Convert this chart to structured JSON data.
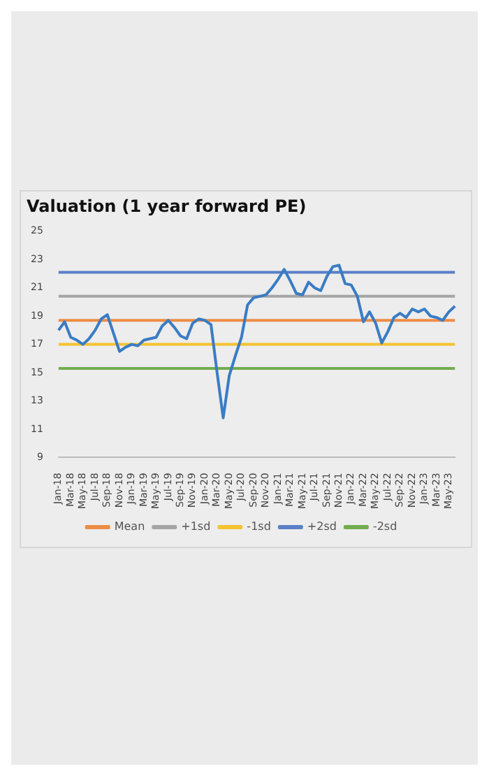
{
  "chart_data": {
    "type": "line",
    "title": "Valuation (1 year forward PE)",
    "categories": [
      "Jan-18",
      null,
      "Mar-18",
      null,
      "May-18",
      null,
      "Jul-18",
      null,
      "Sep-18",
      null,
      "Nov-18",
      null,
      "Jan-19",
      null,
      "Mar-19",
      null,
      "May-19",
      null,
      "Jul-19",
      null,
      "Sep-19",
      null,
      "Nov-19",
      null,
      "Jan-20",
      null,
      "Mar-20",
      null,
      "May-20",
      null,
      "Jul-20",
      null,
      "Sep-20",
      null,
      "Nov-20",
      null,
      "Jan-21",
      null,
      "Mar-21",
      null,
      "May-21",
      null,
      "Jul-21",
      null,
      "Sep-21",
      null,
      "Nov-21",
      null,
      "Jan-22",
      null,
      "Mar-22",
      null,
      "May-22",
      null,
      "Jul-22",
      null,
      "Sep-22",
      null,
      "Nov-22",
      null,
      "Jan-23",
      null,
      "Mar-23",
      null,
      "May-23",
      null
    ],
    "series": [
      {
        "color": "#3a7cc4",
        "values": [
          18.0,
          18.6,
          17.5,
          17.3,
          17.0,
          17.4,
          18.0,
          18.8,
          19.1,
          17.8,
          16.5,
          16.8,
          17.0,
          16.9,
          17.3,
          17.4,
          17.5,
          18.3,
          18.7,
          18.2,
          17.6,
          17.4,
          18.5,
          18.8,
          18.7,
          18.4,
          15.0,
          11.8,
          14.8,
          16.2,
          17.5,
          19.8,
          20.3,
          20.4,
          20.5,
          21.0,
          21.6,
          22.3,
          21.5,
          20.6,
          20.5,
          21.4,
          21.0,
          20.8,
          21.8,
          22.5,
          22.6,
          21.3,
          21.2,
          20.4,
          18.6,
          19.3,
          18.5,
          17.1,
          17.9,
          18.9,
          19.2,
          18.9,
          19.5,
          19.3,
          19.5,
          19.0,
          18.9,
          18.7,
          19.3,
          19.7
        ]
      },
      {
        "name": "Mean",
        "color": "#ed8c45",
        "values": [
          18.7,
          18.7,
          18.7,
          18.7,
          18.7,
          18.7,
          18.7,
          18.7,
          18.7,
          18.7,
          18.7,
          18.7,
          18.7,
          18.7,
          18.7,
          18.7,
          18.7,
          18.7,
          18.7,
          18.7,
          18.7,
          18.7,
          18.7,
          18.7,
          18.7,
          18.7,
          18.7,
          18.7,
          18.7,
          18.7,
          18.7,
          18.7,
          18.7,
          18.7,
          18.7,
          18.7,
          18.7,
          18.7,
          18.7,
          18.7,
          18.7,
          18.7,
          18.7,
          18.7,
          18.7,
          18.7,
          18.7,
          18.7,
          18.7,
          18.7,
          18.7,
          18.7,
          18.7,
          18.7,
          18.7,
          18.7,
          18.7,
          18.7,
          18.7,
          18.7,
          18.7,
          18.7,
          18.7,
          18.7,
          18.7,
          18.7
        ]
      },
      {
        "name": "+1sd",
        "color": "#a5a5a5",
        "values": [
          20.4,
          20.4,
          20.4,
          20.4,
          20.4,
          20.4,
          20.4,
          20.4,
          20.4,
          20.4,
          20.4,
          20.4,
          20.4,
          20.4,
          20.4,
          20.4,
          20.4,
          20.4,
          20.4,
          20.4,
          20.4,
          20.4,
          20.4,
          20.4,
          20.4,
          20.4,
          20.4,
          20.4,
          20.4,
          20.4,
          20.4,
          20.4,
          20.4,
          20.4,
          20.4,
          20.4,
          20.4,
          20.4,
          20.4,
          20.4,
          20.4,
          20.4,
          20.4,
          20.4,
          20.4,
          20.4,
          20.4,
          20.4,
          20.4,
          20.4,
          20.4,
          20.4,
          20.4,
          20.4,
          20.4,
          20.4,
          20.4,
          20.4,
          20.4,
          20.4,
          20.4,
          20.4,
          20.4,
          20.4,
          20.4,
          20.4
        ]
      },
      {
        "name": "-1sd",
        "color": "#f4c330",
        "values": [
          17.0,
          17.0,
          17.0,
          17.0,
          17.0,
          17.0,
          17.0,
          17.0,
          17.0,
          17.0,
          17.0,
          17.0,
          17.0,
          17.0,
          17.0,
          17.0,
          17.0,
          17.0,
          17.0,
          17.0,
          17.0,
          17.0,
          17.0,
          17.0,
          17.0,
          17.0,
          17.0,
          17.0,
          17.0,
          17.0,
          17.0,
          17.0,
          17.0,
          17.0,
          17.0,
          17.0,
          17.0,
          17.0,
          17.0,
          17.0,
          17.0,
          17.0,
          17.0,
          17.0,
          17.0,
          17.0,
          17.0,
          17.0,
          17.0,
          17.0,
          17.0,
          17.0,
          17.0,
          17.0,
          17.0,
          17.0,
          17.0,
          17.0,
          17.0,
          17.0,
          17.0,
          17.0,
          17.0,
          17.0,
          17.0,
          17.0
        ]
      },
      {
        "name": "+2sd",
        "color": "#5b80c8",
        "values": [
          22.1,
          22.1,
          22.1,
          22.1,
          22.1,
          22.1,
          22.1,
          22.1,
          22.1,
          22.1,
          22.1,
          22.1,
          22.1,
          22.1,
          22.1,
          22.1,
          22.1,
          22.1,
          22.1,
          22.1,
          22.1,
          22.1,
          22.1,
          22.1,
          22.1,
          22.1,
          22.1,
          22.1,
          22.1,
          22.1,
          22.1,
          22.1,
          22.1,
          22.1,
          22.1,
          22.1,
          22.1,
          22.1,
          22.1,
          22.1,
          22.1,
          22.1,
          22.1,
          22.1,
          22.1,
          22.1,
          22.1,
          22.1,
          22.1,
          22.1,
          22.1,
          22.1,
          22.1,
          22.1,
          22.1,
          22.1,
          22.1,
          22.1,
          22.1,
          22.1,
          22.1,
          22.1,
          22.1,
          22.1,
          22.1,
          22.1
        ]
      },
      {
        "name": "-2sd",
        "color": "#72ad4d",
        "values": [
          15.3,
          15.3,
          15.3,
          15.3,
          15.3,
          15.3,
          15.3,
          15.3,
          15.3,
          15.3,
          15.3,
          15.3,
          15.3,
          15.3,
          15.3,
          15.3,
          15.3,
          15.3,
          15.3,
          15.3,
          15.3,
          15.3,
          15.3,
          15.3,
          15.3,
          15.3,
          15.3,
          15.3,
          15.3,
          15.3,
          15.3,
          15.3,
          15.3,
          15.3,
          15.3,
          15.3,
          15.3,
          15.3,
          15.3,
          15.3,
          15.3,
          15.3,
          15.3,
          15.3,
          15.3,
          15.3,
          15.3,
          15.3,
          15.3,
          15.3,
          15.3,
          15.3,
          15.3,
          15.3,
          15.3,
          15.3,
          15.3,
          15.3,
          15.3,
          15.3,
          15.3,
          15.3,
          15.3,
          15.3,
          15.3,
          15.3
        ]
      }
    ],
    "ylim": [
      9,
      25
    ],
    "yticks": [
      9,
      11,
      13,
      15,
      17,
      19,
      21,
      23,
      25
    ],
    "legend": "bottom"
  }
}
